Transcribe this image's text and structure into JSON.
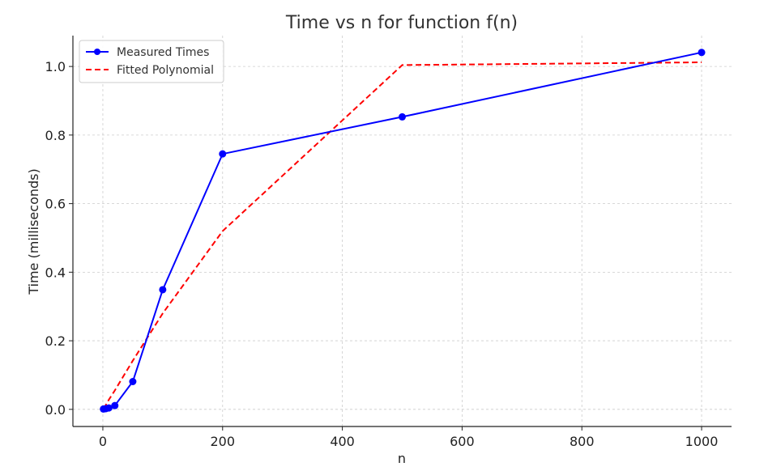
{
  "chart_data": {
    "type": "line",
    "title": "Time vs n for function f(n)",
    "xlabel": "n",
    "ylabel": "Time (milliseconds)",
    "xlim": [
      -50,
      1050
    ],
    "ylim": [
      -0.05,
      1.09
    ],
    "xticks": [
      0,
      200,
      400,
      600,
      800,
      1000
    ],
    "yticks": [
      0.0,
      0.2,
      0.4,
      0.6,
      0.8,
      1.0
    ],
    "xtick_labels": [
      "0",
      "200",
      "400",
      "600",
      "800",
      "1000"
    ],
    "ytick_labels": [
      "0.0",
      "0.2",
      "0.4",
      "0.6",
      "0.8",
      "1.0"
    ],
    "grid": true,
    "legend_position": "top-left",
    "series": [
      {
        "name": "Measured Times",
        "style": "solid-with-markers",
        "color": "#0000ff",
        "x": [
          1,
          5,
          10,
          20,
          50,
          100,
          200,
          500,
          1000
        ],
        "y": [
          0.001,
          0.002,
          0.004,
          0.011,
          0.081,
          0.349,
          0.745,
          0.853,
          1.041
        ]
      },
      {
        "name": "Fitted Polynomial",
        "style": "dashed",
        "color": "#ff0000",
        "x": [
          1,
          5,
          10,
          20,
          50,
          100,
          200,
          500,
          1000
        ],
        "y": [
          0.002,
          0.013,
          0.028,
          0.055,
          0.142,
          0.28,
          0.52,
          1.004,
          1.012
        ]
      }
    ]
  }
}
